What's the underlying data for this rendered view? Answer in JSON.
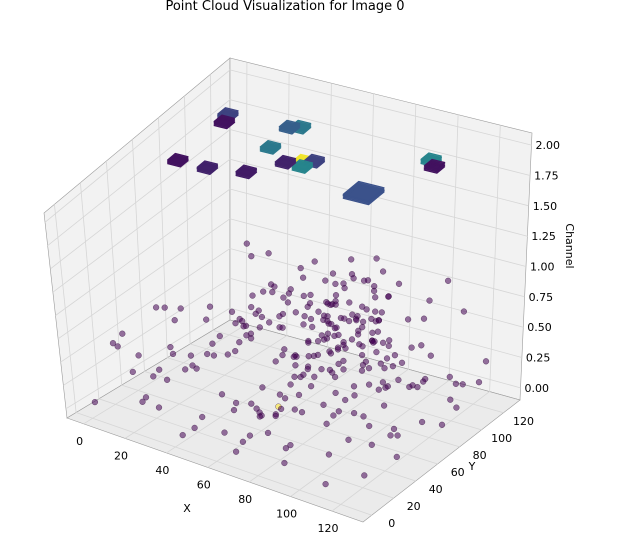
{
  "chart_data": {
    "type": "scatter",
    "projection": "3d",
    "title": "Point Cloud Visualization for Image 0",
    "xlabel": "X",
    "ylabel": "Y",
    "zlabel": "Channel",
    "xlim": [
      -8,
      135
    ],
    "ylim": [
      -8,
      135
    ],
    "zlim": [
      -0.1,
      2.1
    ],
    "xticks": [
      "0",
      "20",
      "40",
      "60",
      "80",
      "100",
      "120"
    ],
    "yticks": [
      "0",
      "20",
      "40",
      "60",
      "80",
      "100",
      "120"
    ],
    "zticks": [
      "0.00",
      "0.25",
      "0.50",
      "0.75",
      "1.00",
      "1.25",
      "1.50",
      "1.75",
      "2.00"
    ],
    "grid": true,
    "colormap": "viridis",
    "colors": {
      "pane": "#f2f2f2",
      "grid": "#d6d6d6",
      "edge": "#9a9a9a",
      "low": "#440154",
      "mid": "#31688e",
      "high": "#fde725"
    },
    "clusters": [
      {
        "x": 78,
        "y": 88,
        "z": 0.6,
        "sx": 12,
        "sy": 14,
        "count": 65,
        "value": 0
      },
      {
        "x": 58,
        "y": 84,
        "z": 0.55,
        "sx": 14,
        "sy": 14,
        "count": 55,
        "value": 0
      }
    ],
    "scattered": {
      "count": 150,
      "xrange": [
        0,
        130
      ],
      "yrange": [
        0,
        130
      ],
      "zrange": [
        0,
        0.9
      ],
      "value": 0
    },
    "blocks": [
      {
        "x": 104,
        "y": 108,
        "z": 2.0,
        "w": 6,
        "value": 0.45
      },
      {
        "x": 108,
        "y": 104,
        "z": 2.0,
        "w": 6,
        "value": 0.05
      },
      {
        "x": 10,
        "y": 104,
        "z": 2.0,
        "w": 6,
        "value": 0.2
      },
      {
        "x": 12,
        "y": 98,
        "z": 2.0,
        "w": 6,
        "value": 0.05
      },
      {
        "x": 42,
        "y": 108,
        "z": 2.0,
        "w": 6,
        "value": 0.4
      },
      {
        "x": 38,
        "y": 106,
        "z": 2.0,
        "w": 6,
        "value": 0.3
      },
      {
        "x": 58,
        "y": 84,
        "z": 2.0,
        "w": 6,
        "value": 0.98
      },
      {
        "x": 62,
        "y": 86,
        "z": 2.0,
        "w": 6,
        "value": 0.2
      },
      {
        "x": 60,
        "y": 80,
        "z": 2.0,
        "w": 6,
        "value": 0.45
      },
      {
        "x": 40,
        "y": 88,
        "z": 2.0,
        "w": 6,
        "value": 0.4
      },
      {
        "x": 52,
        "y": 80,
        "z": 2.0,
        "w": 6,
        "value": 0.1
      },
      {
        "x": 94,
        "y": 72,
        "z": 2.0,
        "w": 12,
        "value": 0.25
      },
      {
        "x": 42,
        "y": 66,
        "z": 2.0,
        "w": 6,
        "value": 0.08
      },
      {
        "x": 12,
        "y": 62,
        "z": 2.0,
        "w": 6,
        "value": 0.05
      },
      {
        "x": 26,
        "y": 62,
        "z": 2.0,
        "w": 6,
        "value": 0.1
      }
    ]
  }
}
